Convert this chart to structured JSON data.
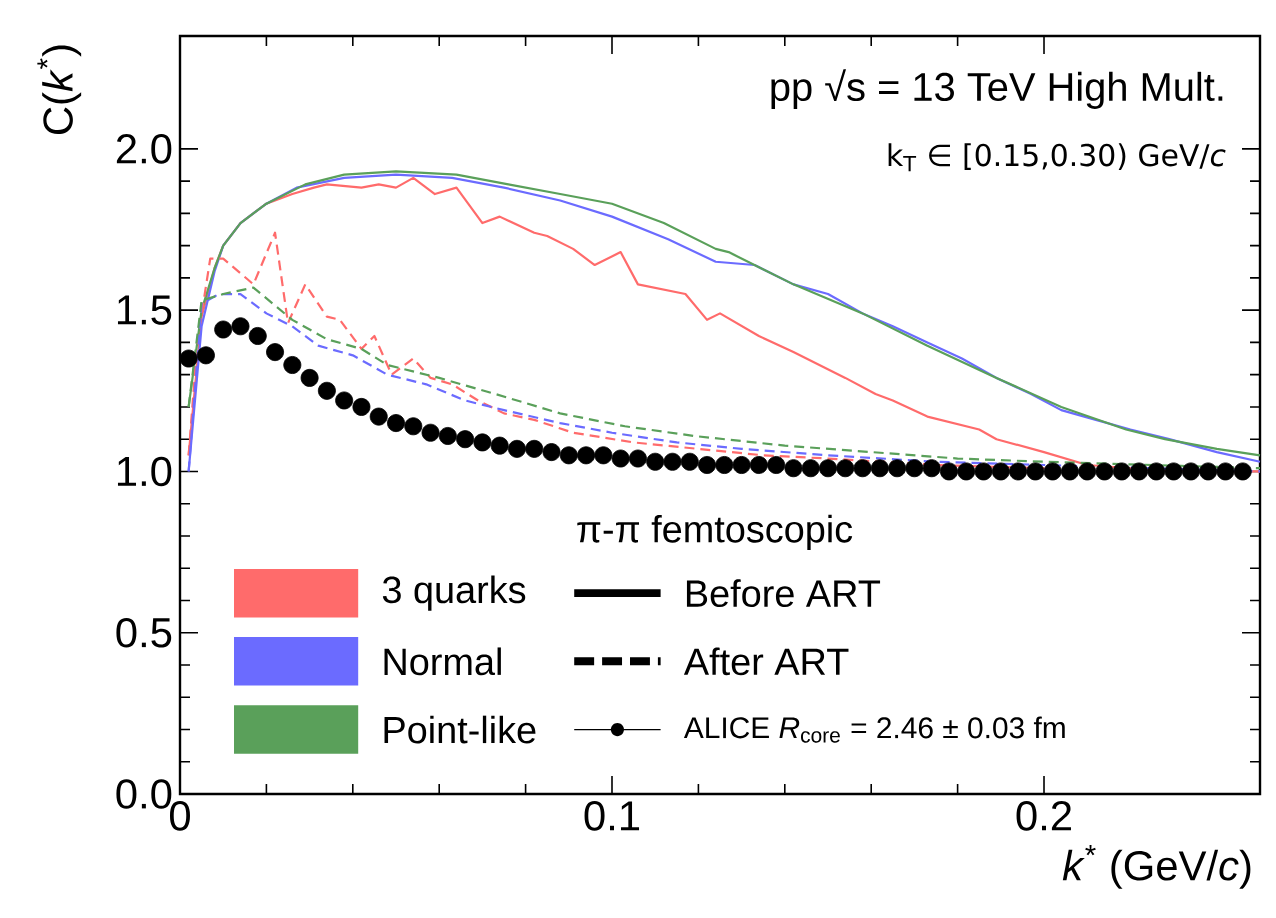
{
  "chart_data": {
    "type": "line",
    "xlabel": "*k*$^{*}$ (GeV/*c*)",
    "ylabel": "C(*k*$^{*}$)",
    "legend_title": "π-π femtoscopic",
    "xlim": [
      0,
      0.25
    ],
    "ylim": [
      0,
      2.35
    ],
    "xticks": [
      0,
      0.1,
      0.2
    ],
    "yticks": [
      {
        "value": 0,
        "label": "0.0"
      },
      {
        "value": 0.5,
        "label": "0.5"
      },
      {
        "value": 1,
        "label": "1.0"
      },
      {
        "value": 1.5,
        "label": "1.5"
      },
      {
        "value": 2,
        "label": "2.0"
      }
    ],
    "grid": false,
    "legend": "bottom",
    "annotations": [
      "pp √s = 13 TeV High Mult.",
      "k$_{T}$ ∈ [0.15,0.30) GeV/*c*",
      "Before ART",
      "After ART"
    ],
    "series": [
      {
        "name": "3 quarks",
        "line_style": "solid",
        "color": "#ff6b6b",
        "x": [
          0.002,
          0.005,
          0.008,
          0.01,
          0.014,
          0.02,
          0.026,
          0.031,
          0.034,
          0.042,
          0.046,
          0.05,
          0.054,
          0.059,
          0.064,
          0.07,
          0.074,
          0.082,
          0.085,
          0.091,
          0.096,
          0.102,
          0.106,
          0.117,
          0.122,
          0.125,
          0.134,
          0.142,
          0.154,
          0.161,
          0.165,
          0.173,
          0.185,
          0.189,
          0.2,
          0.21,
          0.22,
          0.235,
          0.25
        ],
        "values": [
          1.05,
          1.48,
          1.63,
          1.7,
          1.77,
          1.83,
          1.86,
          1.88,
          1.89,
          1.88,
          1.89,
          1.88,
          1.91,
          1.86,
          1.88,
          1.77,
          1.79,
          1.74,
          1.73,
          1.69,
          1.64,
          1.68,
          1.58,
          1.55,
          1.47,
          1.49,
          1.42,
          1.37,
          1.29,
          1.24,
          1.22,
          1.17,
          1.13,
          1.1,
          1.06,
          1.02,
          1.01,
          1.0,
          1.0
        ]
      },
      {
        "name": "Normal",
        "line_style": "solid",
        "color": "#6b6bff",
        "x": [
          0.002,
          0.005,
          0.008,
          0.01,
          0.014,
          0.02,
          0.027,
          0.038,
          0.05,
          0.063,
          0.075,
          0.088,
          0.1,
          0.113,
          0.124,
          0.133,
          0.142,
          0.15,
          0.158,
          0.165,
          0.173,
          0.181,
          0.189,
          0.197,
          0.204,
          0.212,
          0.22,
          0.229,
          0.24,
          0.25
        ],
        "values": [
          1.0,
          1.45,
          1.62,
          1.7,
          1.77,
          1.83,
          1.88,
          1.91,
          1.92,
          1.91,
          1.88,
          1.84,
          1.79,
          1.72,
          1.65,
          1.64,
          1.58,
          1.55,
          1.49,
          1.45,
          1.4,
          1.35,
          1.29,
          1.24,
          1.19,
          1.16,
          1.13,
          1.1,
          1.06,
          1.03
        ]
      },
      {
        "name": "Point-like",
        "line_style": "solid",
        "color": "#5aa05a",
        "x": [
          0.002,
          0.005,
          0.008,
          0.01,
          0.014,
          0.02,
          0.029,
          0.038,
          0.05,
          0.064,
          0.076,
          0.088,
          0.1,
          0.112,
          0.124,
          0.127,
          0.142,
          0.158,
          0.173,
          0.189,
          0.204,
          0.219,
          0.228,
          0.24,
          0.25
        ],
        "values": [
          1.2,
          1.5,
          1.63,
          1.7,
          1.77,
          1.83,
          1.89,
          1.92,
          1.93,
          1.92,
          1.89,
          1.86,
          1.83,
          1.77,
          1.69,
          1.68,
          1.58,
          1.49,
          1.39,
          1.29,
          1.2,
          1.13,
          1.1,
          1.07,
          1.05
        ]
      },
      {
        "line_style": "dashed",
        "color": "#ff6b6b",
        "x": [
          0.002,
          0.004,
          0.007,
          0.01,
          0.017,
          0.022,
          0.025,
          0.029,
          0.034,
          0.037,
          0.042,
          0.045,
          0.049,
          0.054,
          0.058,
          0.063,
          0.069,
          0.075,
          0.082,
          0.091,
          0.105,
          0.12,
          0.135,
          0.15,
          0.175,
          0.2,
          0.25
        ],
        "values": [
          1.05,
          1.4,
          1.66,
          1.66,
          1.58,
          1.74,
          1.46,
          1.58,
          1.48,
          1.47,
          1.38,
          1.42,
          1.3,
          1.35,
          1.29,
          1.27,
          1.22,
          1.18,
          1.16,
          1.12,
          1.09,
          1.07,
          1.05,
          1.04,
          1.02,
          1.01,
          1.0
        ]
      },
      {
        "line_style": "dashed",
        "color": "#6b6bff",
        "x": [
          0.002,
          0.005,
          0.009,
          0.014,
          0.02,
          0.026,
          0.032,
          0.04,
          0.048,
          0.057,
          0.066,
          0.075,
          0.088,
          0.1,
          0.115,
          0.13,
          0.15,
          0.175,
          0.2,
          0.225,
          0.25
        ],
        "values": [
          1.0,
          1.52,
          1.55,
          1.55,
          1.49,
          1.45,
          1.39,
          1.36,
          1.3,
          1.27,
          1.22,
          1.19,
          1.15,
          1.12,
          1.09,
          1.07,
          1.05,
          1.03,
          1.02,
          1.01,
          1.0
        ]
      },
      {
        "line_style": "dashed",
        "color": "#5aa05a",
        "x": [
          0.002,
          0.005,
          0.01,
          0.017,
          0.026,
          0.034,
          0.042,
          0.048,
          0.06,
          0.073,
          0.088,
          0.103,
          0.119,
          0.14,
          0.16,
          0.18,
          0.2,
          0.225,
          0.25
        ],
        "values": [
          1.2,
          1.53,
          1.55,
          1.57,
          1.47,
          1.41,
          1.38,
          1.33,
          1.29,
          1.24,
          1.18,
          1.14,
          1.11,
          1.08,
          1.06,
          1.04,
          1.03,
          1.02,
          1.01
        ]
      },
      {
        "name": "ALICE *R*$_{core}$ = 2.46 ± 0.03 fm",
        "type": "scatter",
        "marker": "circle",
        "color": "#000000",
        "x": [
          0.002,
          0.006,
          0.01,
          0.014,
          0.018,
          0.022,
          0.026,
          0.03,
          0.034,
          0.038,
          0.042,
          0.046,
          0.05,
          0.054,
          0.058,
          0.062,
          0.066,
          0.07,
          0.074,
          0.078,
          0.082,
          0.086,
          0.09,
          0.094,
          0.098,
          0.102,
          0.106,
          0.11,
          0.114,
          0.118,
          0.122,
          0.126,
          0.13,
          0.134,
          0.138,
          0.142,
          0.146,
          0.15,
          0.154,
          0.158,
          0.162,
          0.166,
          0.17,
          0.174,
          0.178,
          0.182,
          0.186,
          0.19,
          0.194,
          0.198,
          0.202,
          0.206,
          0.21,
          0.214,
          0.218,
          0.222,
          0.226,
          0.23,
          0.234,
          0.238,
          0.242,
          0.246
        ],
        "values": [
          1.35,
          1.36,
          1.44,
          1.45,
          1.42,
          1.37,
          1.33,
          1.29,
          1.25,
          1.22,
          1.2,
          1.17,
          1.15,
          1.14,
          1.12,
          1.11,
          1.1,
          1.09,
          1.08,
          1.07,
          1.07,
          1.06,
          1.05,
          1.05,
          1.05,
          1.04,
          1.04,
          1.03,
          1.03,
          1.03,
          1.02,
          1.02,
          1.02,
          1.02,
          1.02,
          1.01,
          1.01,
          1.01,
          1.01,
          1.01,
          1.01,
          1.01,
          1.01,
          1.01,
          1.0,
          1.0,
          1.0,
          1.0,
          1.0,
          1.0,
          1.0,
          1.0,
          1.0,
          1.0,
          1.0,
          1.0,
          1.0,
          1.0,
          1.0,
          1.0,
          1.0,
          1.0
        ]
      }
    ]
  }
}
